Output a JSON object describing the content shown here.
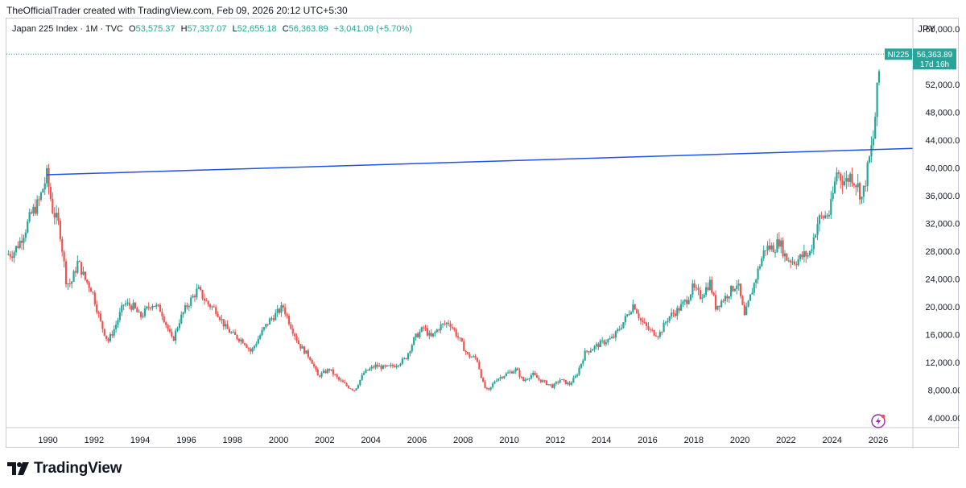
{
  "header": {
    "caption": "TheOfficialTrader created with TradingView.com, Feb 09, 2026 20:12 UTC+5:30"
  },
  "legend": {
    "symbol": "Japan 225 Index · 1M · TVC",
    "open_label": "O",
    "open": "53,575.37",
    "high_label": "H",
    "high": "57,337.07",
    "low_label": "L",
    "low": "52,655.18",
    "close_label": "C",
    "close": "56,363.89",
    "change": "+3,041.09 (+5.70%)"
  },
  "currency": "JPY",
  "price_tag": {
    "ticker": "NI225",
    "price": "56,363.89",
    "countdown": "17d 16h"
  },
  "footer": {
    "brand": "TradingView"
  },
  "colors": {
    "up": "#26a69a",
    "down": "#ef5350",
    "trendline": "#1e53e5",
    "price_tag": "#26a69a",
    "legend_values": "#26a69a",
    "lightning": "#9c27b0"
  },
  "chart_data": {
    "type": "candlestick",
    "title": "Japan 225 Index",
    "interval": "1M",
    "y_axis_labels": [
      "4,000.00",
      "8,000.00",
      "12,000.00",
      "16,000.00",
      "20,000.00",
      "24,000.00",
      "28,000.00",
      "32,000.00",
      "36,000.00",
      "40,000.00",
      "44,000.00",
      "48,000.00",
      "52,000.00",
      "60,000.00"
    ],
    "x_axis_labels": [
      "1990",
      "1992",
      "1994",
      "1996",
      "1998",
      "2000",
      "2002",
      "2004",
      "2006",
      "2008",
      "2010",
      "2012",
      "2014",
      "2016",
      "2018",
      "2020",
      "2022",
      "2024",
      "2026"
    ],
    "ylim": [
      2600,
      61500
    ],
    "xlim": [
      1988.2,
      2027.5
    ],
    "series": [
      {
        "name": "NI225",
        "price_points": [
          [
            1988.2,
            27500
          ],
          [
            1988.5,
            27800
          ],
          [
            1988.8,
            29500
          ],
          [
            1989.0,
            31000
          ],
          [
            1989.3,
            33500
          ],
          [
            1989.6,
            35000
          ],
          [
            1989.95,
            38900
          ],
          [
            1990.2,
            34000
          ],
          [
            1990.5,
            31500
          ],
          [
            1990.8,
            23500
          ],
          [
            1991.0,
            23300
          ],
          [
            1991.3,
            26500
          ],
          [
            1991.6,
            24000
          ],
          [
            1991.9,
            22500
          ],
          [
            1992.3,
            17500
          ],
          [
            1992.6,
            15000
          ],
          [
            1992.9,
            17000
          ],
          [
            1993.3,
            20500
          ],
          [
            1993.7,
            20000
          ],
          [
            1994.0,
            18500
          ],
          [
            1994.5,
            20500
          ],
          [
            1994.9,
            19500
          ],
          [
            1995.4,
            15000
          ],
          [
            1995.7,
            18000
          ],
          [
            1996.0,
            20000
          ],
          [
            1996.5,
            22500
          ],
          [
            1996.9,
            20500
          ],
          [
            1997.3,
            19500
          ],
          [
            1997.7,
            17000
          ],
          [
            1998.0,
            16000
          ],
          [
            1998.5,
            15000
          ],
          [
            1998.8,
            13500
          ],
          [
            1999.3,
            16500
          ],
          [
            1999.6,
            18000
          ],
          [
            2000.2,
            20000
          ],
          [
            2000.5,
            17500
          ],
          [
            2000.9,
            14500
          ],
          [
            2001.4,
            12500
          ],
          [
            2001.7,
            10000
          ],
          [
            2002.2,
            11000
          ],
          [
            2002.6,
            9500
          ],
          [
            2003.0,
            8500
          ],
          [
            2003.3,
            8000
          ],
          [
            2003.7,
            10500
          ],
          [
            2004.2,
            11500
          ],
          [
            2004.6,
            11200
          ],
          [
            2005.0,
            11500
          ],
          [
            2005.5,
            12500
          ],
          [
            2005.9,
            15500
          ],
          [
            2006.3,
            17000
          ],
          [
            2006.6,
            15500
          ],
          [
            2007.0,
            17200
          ],
          [
            2007.4,
            17800
          ],
          [
            2007.8,
            15500
          ],
          [
            2008.2,
            13000
          ],
          [
            2008.6,
            12500
          ],
          [
            2008.9,
            8500
          ],
          [
            2009.1,
            7800
          ],
          [
            2009.4,
            9500
          ],
          [
            2009.8,
            10200
          ],
          [
            2010.3,
            11000
          ],
          [
            2010.6,
            9300
          ],
          [
            2011.0,
            10300
          ],
          [
            2011.3,
            9500
          ],
          [
            2011.6,
            9000
          ],
          [
            2011.9,
            8500
          ],
          [
            2012.2,
            9500
          ],
          [
            2012.6,
            8800
          ],
          [
            2012.9,
            10000
          ],
          [
            2013.3,
            13500
          ],
          [
            2013.6,
            14000
          ],
          [
            2014.0,
            14800
          ],
          [
            2014.5,
            15500
          ],
          [
            2014.9,
            17500
          ],
          [
            2015.4,
            20500
          ],
          [
            2015.7,
            18000
          ],
          [
            2016.1,
            16500
          ],
          [
            2016.5,
            16000
          ],
          [
            2016.9,
            18500
          ],
          [
            2017.3,
            19500
          ],
          [
            2017.7,
            21000
          ],
          [
            2017.95,
            22700
          ],
          [
            2018.3,
            21500
          ],
          [
            2018.7,
            23500
          ],
          [
            2018.95,
            20000
          ],
          [
            2019.4,
            21500
          ],
          [
            2019.9,
            23500
          ],
          [
            2020.2,
            18500
          ],
          [
            2020.5,
            22000
          ],
          [
            2020.9,
            26500
          ],
          [
            2021.1,
            28500
          ],
          [
            2021.5,
            28500
          ],
          [
            2021.7,
            29500
          ],
          [
            2022.0,
            27000
          ],
          [
            2022.4,
            26500
          ],
          [
            2022.8,
            27500
          ],
          [
            2023.0,
            27400
          ],
          [
            2023.4,
            32500
          ],
          [
            2023.9,
            33500
          ],
          [
            2024.2,
            39500
          ],
          [
            2024.4,
            38500
          ],
          [
            2024.6,
            38000
          ],
          [
            2024.8,
            39000
          ],
          [
            2025.1,
            37500
          ],
          [
            2025.3,
            35500
          ],
          [
            2025.6,
            41000
          ],
          [
            2025.8,
            44500
          ],
          [
            2025.9,
            49000
          ],
          [
            2026.0,
            52500
          ],
          [
            2026.1,
            56363.89
          ]
        ]
      }
    ],
    "trendline": {
      "start": [
        1989.95,
        39000
      ],
      "end": [
        2027.5,
        42800
      ]
    },
    "last_price": 56363.89
  }
}
